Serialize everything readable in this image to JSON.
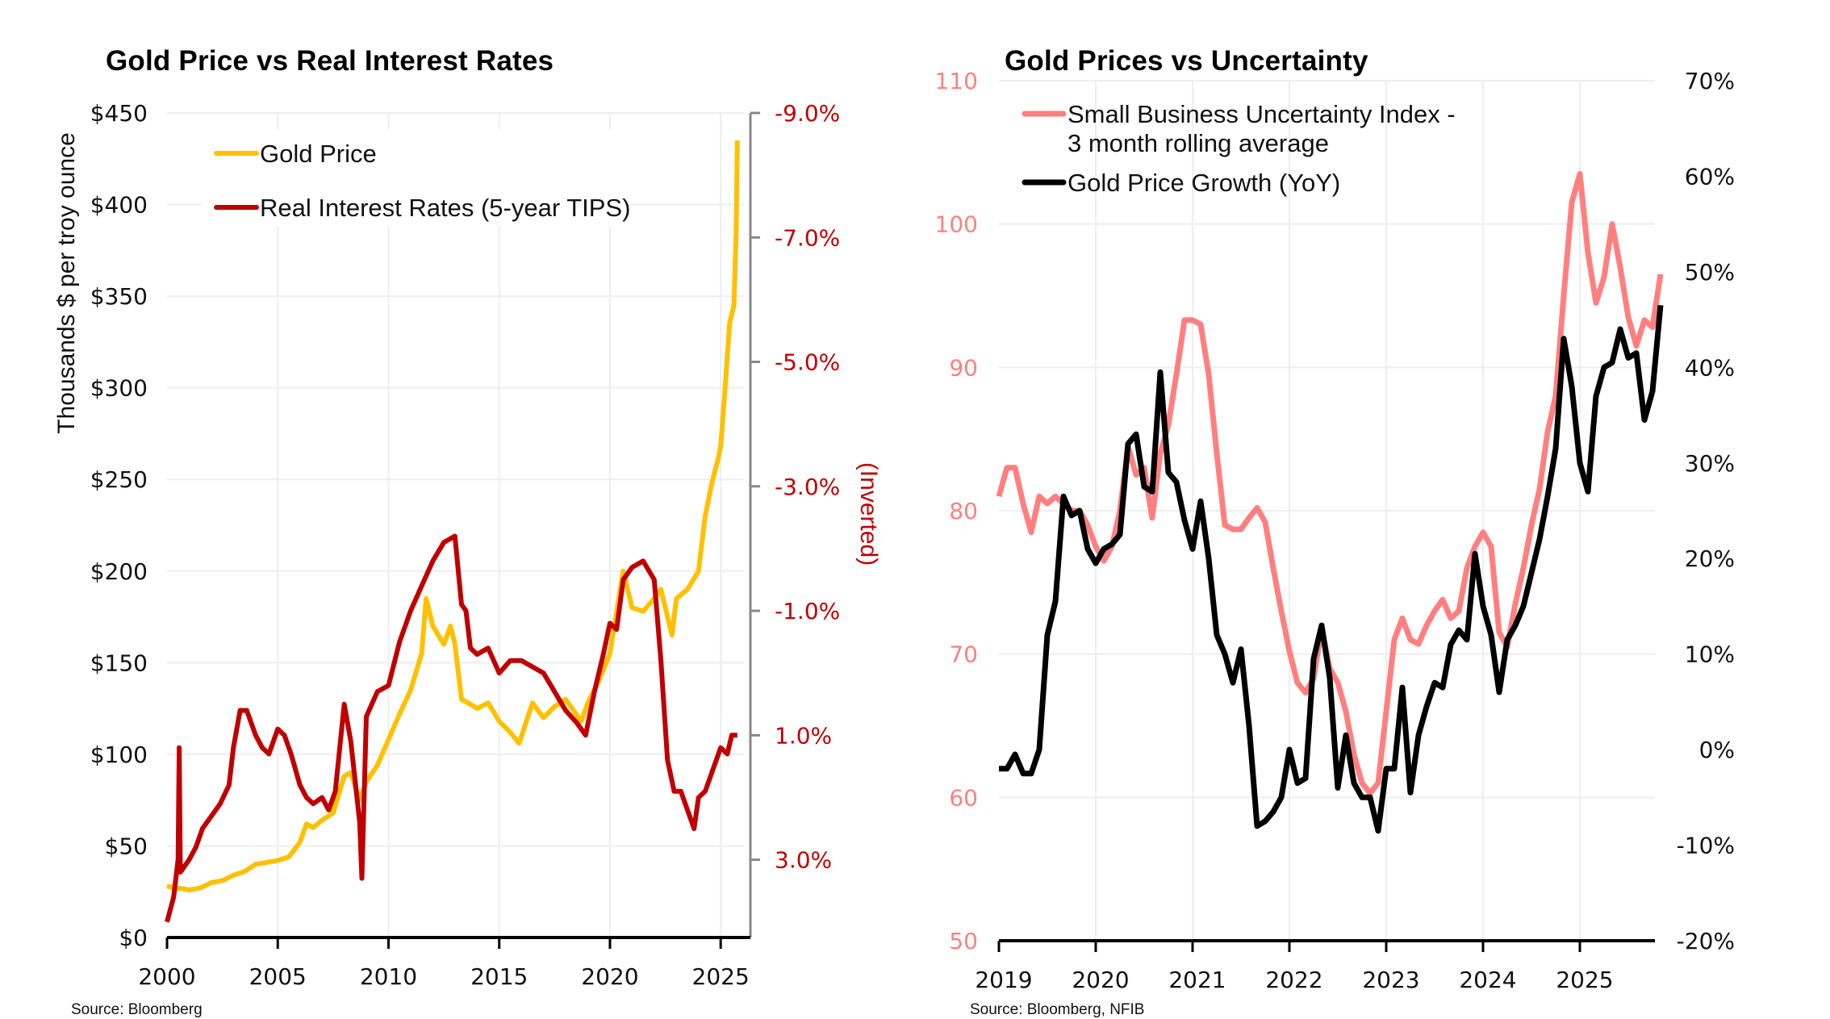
{
  "charts": [
    {
      "id": "left",
      "title": "Gold Price vs Real Interest Rates",
      "source": "Source: Bloomberg",
      "left_axis_label": "Thousands $ per troy ounce",
      "right_axis_label": "(Inverted)",
      "legend": [
        {
          "label": "Gold Price",
          "color": "#FFC000"
        },
        {
          "label": "Real Interest Rates (5-year TIPS)",
          "color": "#C00000"
        }
      ]
    },
    {
      "id": "right",
      "title": "Gold Prices vs Uncertainty",
      "source": "Source: Bloomberg, NFIB",
      "legend": [
        {
          "label_line1": "Small Business Uncertainty Index -",
          "label_line2": "3 month rolling average",
          "color": "#FF7F7F"
        },
        {
          "label": "Gold Price Growth (YoY)",
          "color": "#000000"
        }
      ]
    }
  ],
  "chart_data": [
    {
      "type": "line",
      "title": "Gold Price vs Real Interest Rates",
      "xlabel": "",
      "ylabel": "Thousands $ per troy ounce",
      "y2label": "(Inverted)",
      "x_ticks": [
        "2000",
        "2005",
        "2010",
        "2015",
        "2020",
        "2025"
      ],
      "xlim": [
        2000,
        2026.05
      ],
      "y_ticks": [
        "$0",
        "$50",
        "$100",
        "$150",
        "$200",
        "$250",
        "$300",
        "$350",
        "$400",
        "$450"
      ],
      "ylim": [
        0,
        450
      ],
      "y2_ticks": [
        "-9.0%",
        "-7.0%",
        "-5.0%",
        "-3.0%",
        "-1.0%",
        "1.0%",
        "3.0%"
      ],
      "y2lim_inverted": [
        -9.0,
        4.25
      ],
      "grid": true,
      "legend_position": "top-left",
      "series": [
        {
          "name": "Gold Price",
          "axis": "left",
          "color": "#FFC000",
          "x": [
            2000.0,
            2000.5,
            2001.0,
            2001.5,
            2002.0,
            2002.5,
            2003.0,
            2003.5,
            2004.0,
            2004.5,
            2005.0,
            2005.5,
            2006.0,
            2006.3,
            2006.6,
            2007.0,
            2007.5,
            2008.0,
            2008.3,
            2008.7,
            2009.0,
            2009.5,
            2010.0,
            2010.5,
            2011.0,
            2011.5,
            2011.7,
            2012.0,
            2012.5,
            2012.8,
            2013.0,
            2013.3,
            2013.6,
            2014.0,
            2014.5,
            2015.0,
            2015.5,
            2015.9,
            2016.5,
            2017.0,
            2017.5,
            2018.0,
            2018.7,
            2019.0,
            2019.5,
            2020.0,
            2020.6,
            2021.0,
            2021.5,
            2022.0,
            2022.3,
            2022.8,
            2023.0,
            2023.5,
            2024.0,
            2024.3,
            2024.6,
            2024.9,
            2025.0,
            2025.2,
            2025.4,
            2025.6,
            2025.7,
            2025.75
          ],
          "values": [
            28,
            27,
            26,
            27,
            30,
            31,
            34,
            36,
            40,
            41,
            42,
            44,
            52,
            62,
            60,
            64,
            68,
            88,
            90,
            75,
            85,
            94,
            108,
            122,
            135,
            155,
            185,
            170,
            160,
            170,
            160,
            130,
            128,
            125,
            128,
            118,
            112,
            106,
            128,
            120,
            126,
            130,
            118,
            128,
            140,
            155,
            200,
            180,
            178,
            185,
            190,
            165,
            185,
            190,
            200,
            230,
            248,
            262,
            268,
            300,
            335,
            345,
            385,
            435
          ]
        },
        {
          "name": "Real Interest Rates (5-year TIPS)",
          "axis": "right",
          "inverted": true,
          "color": "#C00000",
          "x": [
            2000.0,
            2000.3,
            2000.5,
            2000.55,
            2000.6,
            2001.0,
            2001.3,
            2001.6,
            2002.0,
            2002.4,
            2002.8,
            2003.0,
            2003.3,
            2003.6,
            2004.0,
            2004.3,
            2004.6,
            2005.0,
            2005.3,
            2005.6,
            2006.0,
            2006.3,
            2006.6,
            2007.0,
            2007.3,
            2007.6,
            2008.0,
            2008.3,
            2008.7,
            2008.8,
            2009.0,
            2009.5,
            2010.0,
            2010.5,
            2011.0,
            2011.5,
            2012.0,
            2012.5,
            2013.0,
            2013.3,
            2013.5,
            2013.7,
            2014.0,
            2014.5,
            2015.0,
            2015.5,
            2016.0,
            2016.5,
            2017.0,
            2017.5,
            2018.0,
            2018.5,
            2018.9,
            2019.3,
            2019.7,
            2020.0,
            2020.3,
            2020.6,
            2021.0,
            2021.5,
            2022.0,
            2022.3,
            2022.6,
            2022.9,
            2023.2,
            2023.5,
            2023.8,
            2024.0,
            2024.3,
            2024.6,
            2025.0,
            2025.3,
            2025.5,
            2025.75
          ],
          "values": [
            4.0,
            3.6,
            3.0,
            1.2,
            3.2,
            3.0,
            2.8,
            2.5,
            2.3,
            2.1,
            1.8,
            1.2,
            0.6,
            0.6,
            1.0,
            1.2,
            1.3,
            0.9,
            1.0,
            1.3,
            1.8,
            2.0,
            2.1,
            2.0,
            2.2,
            1.9,
            0.5,
            1.1,
            2.4,
            3.3,
            0.7,
            0.3,
            0.2,
            -0.5,
            -1.0,
            -1.4,
            -1.8,
            -2.1,
            -2.2,
            -1.1,
            -1.0,
            -0.4,
            -0.3,
            -0.4,
            0.0,
            -0.2,
            -0.2,
            -0.1,
            0.0,
            0.3,
            0.6,
            0.8,
            1.0,
            0.3,
            -0.3,
            -0.8,
            -0.7,
            -1.5,
            -1.7,
            -1.8,
            -1.5,
            -0.2,
            1.4,
            1.9,
            1.9,
            2.2,
            2.5,
            2.0,
            1.9,
            1.6,
            1.2,
            1.3,
            1.0,
            1.0
          ]
        }
      ]
    },
    {
      "type": "line",
      "title": "Gold Prices vs Uncertainty",
      "xlabel": "",
      "ylabel": "",
      "x_ticks": [
        "2019",
        "2020",
        "2021",
        "2022",
        "2023",
        "2024",
        "2025"
      ],
      "xlim": [
        2019.0,
        2025.8
      ],
      "y_ticks": [
        "50",
        "60",
        "70",
        "80",
        "90",
        "100",
        "110"
      ],
      "ylim": [
        50,
        110
      ],
      "y2_ticks": [
        "-20%",
        "-10%",
        "0%",
        "10%",
        "20%",
        "30%",
        "40%",
        "50%",
        "60%",
        "70%"
      ],
      "y2lim": [
        -20,
        70
      ],
      "grid": true,
      "legend_position": "top-left",
      "x_start": 2019.0,
      "x_step_months": 1,
      "series": [
        {
          "name": "Small Business Uncertainty Index - 3 month rolling average",
          "axis": "left",
          "color": "#FF7F7F",
          "values": [
            81,
            83,
            83,
            80.5,
            78.5,
            81,
            80.5,
            81,
            80.5,
            80,
            80,
            79,
            77.5,
            76.5,
            77.5,
            80,
            84.5,
            82.5,
            83,
            79.5,
            84,
            86,
            89.5,
            93.3,
            93.3,
            93,
            89.5,
            84,
            79,
            78.7,
            78.7,
            79.5,
            80.2,
            79.2,
            76,
            73,
            70.2,
            68,
            67.3,
            68.3,
            71.8,
            69,
            68,
            66,
            63,
            61,
            60.3,
            61,
            66,
            71,
            72.5,
            71,
            70.7,
            72,
            73,
            73.8,
            72.5,
            73,
            76,
            77.5,
            78.5,
            77.5,
            71.5,
            70.5,
            73.5,
            76,
            79,
            81.5,
            85.5,
            88,
            95,
            101.5,
            103.5,
            98,
            94.5,
            96.3,
            100,
            97,
            93.5,
            91.5,
            93.3,
            92.8,
            96.5
          ]
        },
        {
          "name": "Gold Price Growth (YoY)",
          "axis": "right",
          "color": "#000000",
          "values": [
            -2,
            -2,
            -0.5,
            -2.5,
            -2.5,
            0,
            12,
            15.5,
            26.5,
            24.5,
            25,
            21,
            19.5,
            21,
            21.5,
            22.5,
            32,
            33,
            27.5,
            27,
            39.5,
            29,
            28,
            24,
            21,
            26,
            20,
            12,
            10,
            7,
            10.5,
            2.5,
            -8,
            -7.5,
            -6.5,
            -5,
            0,
            -3.5,
            -3,
            9.5,
            13,
            7.5,
            -4,
            1.5,
            -3.5,
            -5,
            -5,
            -8.5,
            -2,
            -2,
            6.5,
            -4.5,
            1.5,
            4.5,
            7,
            6.5,
            11,
            12.5,
            11.5,
            20.5,
            15,
            12,
            6,
            11.5,
            13,
            15,
            18.5,
            22,
            26.5,
            31.5,
            43,
            38,
            30,
            27,
            37,
            40,
            40.5,
            44,
            41,
            41.5,
            34.5,
            37.5,
            46.5
          ]
        }
      ]
    }
  ]
}
